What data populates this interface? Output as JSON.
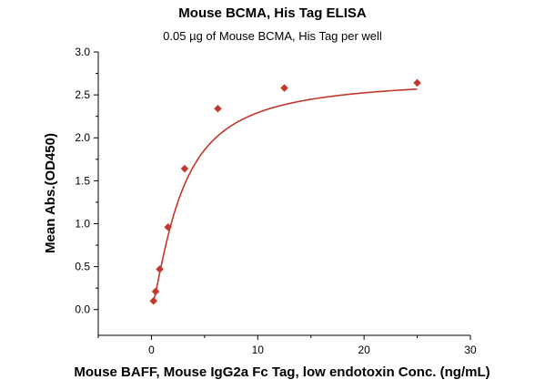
{
  "chart_data": {
    "type": "scatter",
    "title": "Mouse BCMA, His Tag ELISA",
    "subtitle": "0.05 µg of Mouse BCMA, His Tag per well",
    "xlabel": "Mouse BAFF, Mouse IgG2a Fc Tag, low endotoxin Conc. (ng/mL)",
    "ylabel": "Mean Abs.(OD450)",
    "xlim": [
      -5,
      30
    ],
    "ylim": [
      -0.3,
      3.0
    ],
    "x_ticks": [
      0,
      10,
      20,
      30
    ],
    "y_ticks": [
      0.0,
      0.5,
      1.0,
      1.5,
      2.0,
      2.5,
      3.0
    ],
    "grid": false,
    "series": [
      {
        "marker": "diamond",
        "color": "#c0392b",
        "fit": "4PL",
        "x": [
          0.195,
          0.39,
          0.78,
          1.56,
          3.125,
          6.25,
          12.5,
          25
        ],
        "y": [
          0.1,
          0.21,
          0.47,
          0.96,
          1.64,
          2.34,
          2.58,
          2.64
        ]
      }
    ]
  }
}
